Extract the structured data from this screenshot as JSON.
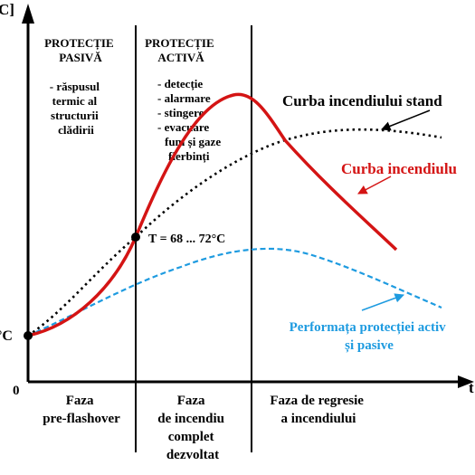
{
  "chart_data": {
    "type": "line",
    "title": "",
    "axes": {
      "y_label": "[°C]",
      "y_label_visible": "C]",
      "x_label_visible": "t",
      "origin_label": "0",
      "ambient_label": "°C"
    },
    "phases": [
      {
        "id": "pre-flashover",
        "lines": [
          "Faza",
          "pre-flashover"
        ]
      },
      {
        "id": "developed",
        "lines": [
          "Faza",
          "de incendiu",
          "complet",
          "dezvoltat"
        ]
      },
      {
        "id": "decay",
        "lines": [
          "Faza de regresie",
          "a incendiului"
        ]
      }
    ],
    "protection": {
      "passive": {
        "title": [
          "PROTECȚIE",
          "PASIVĂ"
        ],
        "items": [
          "- răspusul",
          "termic al",
          "structurii",
          "clădirii"
        ]
      },
      "active": {
        "title": [
          "PROTECȚIE",
          "ACTIVĂ"
        ],
        "items": [
          "- detecție",
          "- alarmare",
          "- stingere",
          "- evacuare",
          "fum și gaze",
          "fierbinți"
        ]
      }
    },
    "flashover_label": "T  = 68 ... 72°C",
    "series": [
      {
        "name": "Curba incendiului standard",
        "label_visible": "Curba incendiului stand",
        "color": "#000000",
        "style": "dotted"
      },
      {
        "name": "Curba incendiului",
        "label_visible": "Curba incendiulu",
        "color": "#d41414",
        "style": "solid"
      },
      {
        "name": "Performața protecției active și pasive",
        "label_lines": [
          "Performața protecției activ",
          "și pasive"
        ],
        "color": "#1e9be0",
        "style": "dashed"
      }
    ],
    "colors": {
      "axis": "#000000",
      "fire": "#d41414",
      "standard": "#000000",
      "protection": "#1e9be0"
    }
  }
}
